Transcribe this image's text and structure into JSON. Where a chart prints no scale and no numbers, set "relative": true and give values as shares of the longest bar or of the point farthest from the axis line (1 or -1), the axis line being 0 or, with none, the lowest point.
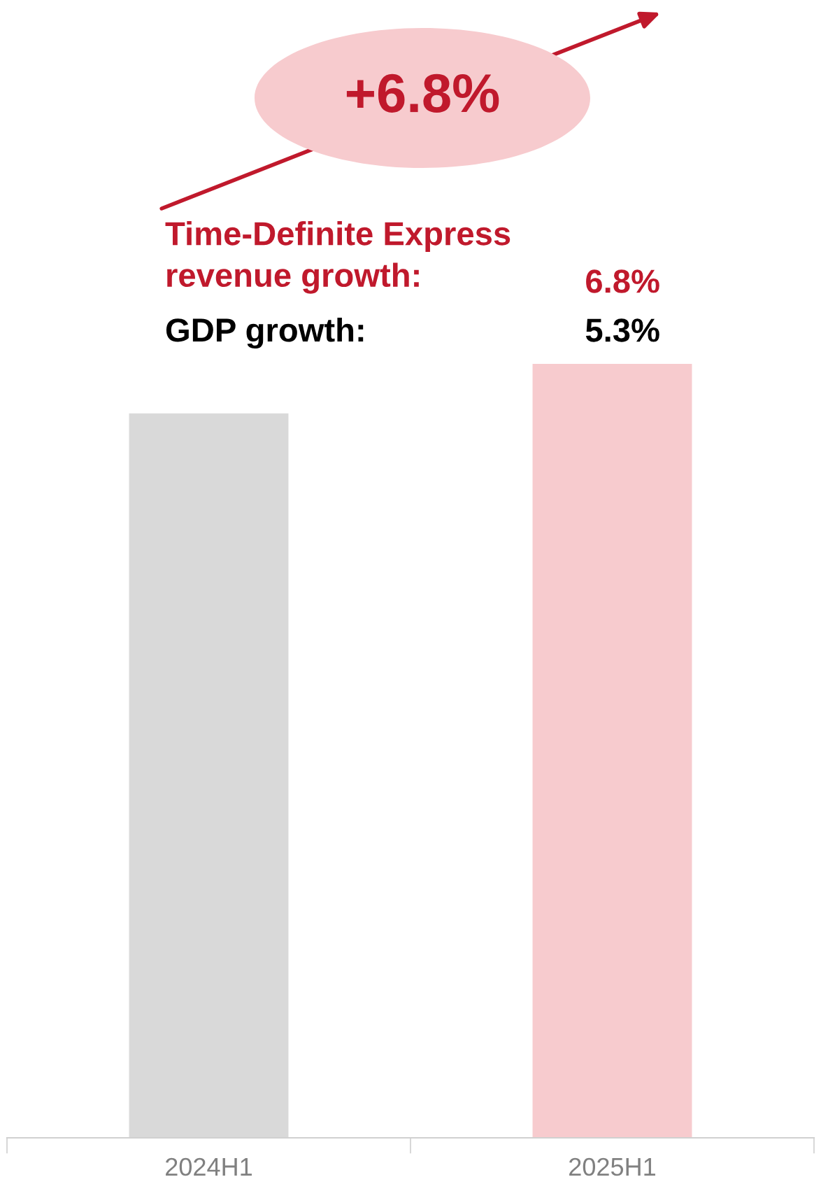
{
  "chart_data": {
    "type": "bar",
    "relative": true,
    "categories": [
      "2024H1",
      "2025H1"
    ],
    "values": [
      0.936,
      1
    ],
    "colors": [
      "#d9d9d9",
      "#f7cbce"
    ],
    "annotations": [
      "+6.8%",
      "Time-Definite Express\nrevenue growth:",
      "6.8%",
      "GDP growth:",
      "5.3%"
    ],
    "grid": false,
    "legend": false
  }
}
